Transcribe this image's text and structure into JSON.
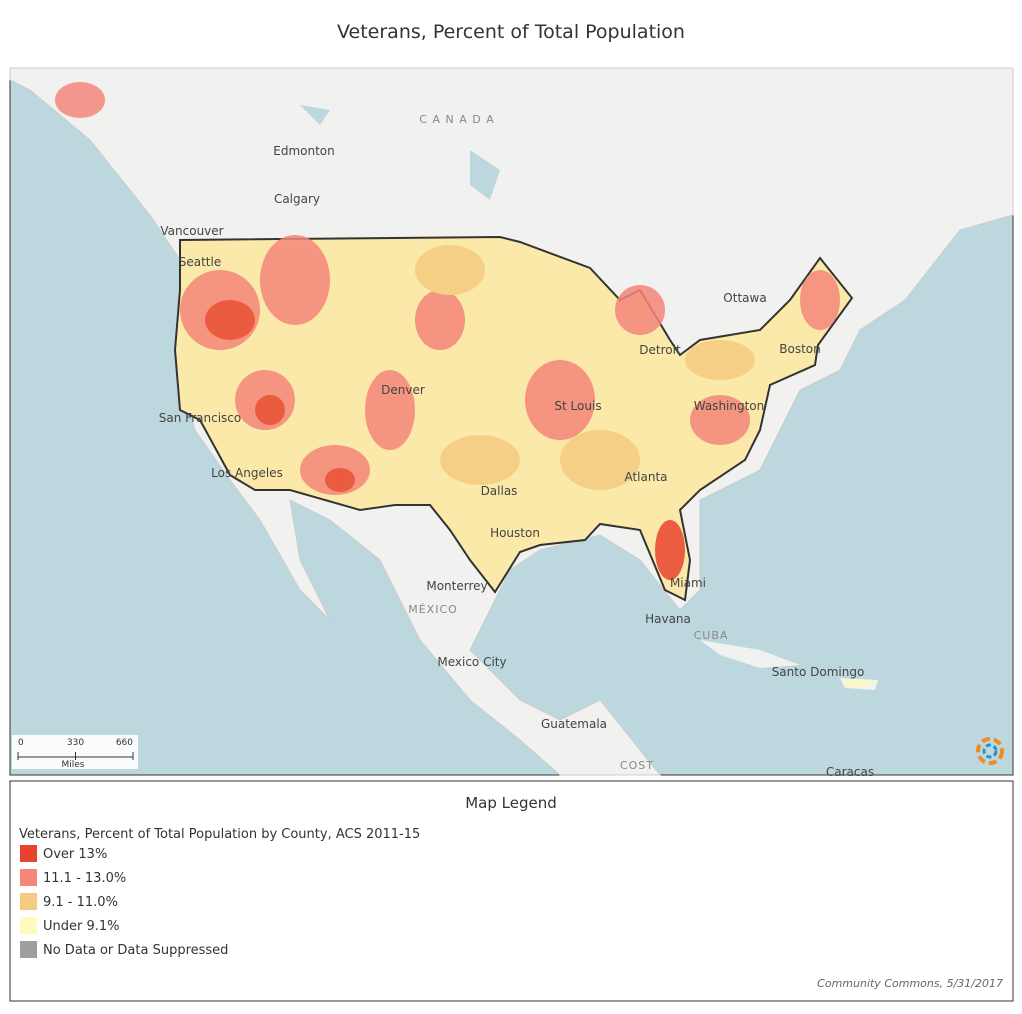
{
  "header": {
    "title": "Veterans, Percent of Total Population"
  },
  "map": {
    "labels": {
      "canada": "C A N A D A",
      "edmonton": "Edmonton",
      "calgary": "Calgary",
      "vancouver": "Vancouver",
      "seattle": "Seattle",
      "san_francisco": "San Francisco",
      "los_angeles": "Los Angeles",
      "denver": "Denver",
      "dallas": "Dallas",
      "houston": "Houston",
      "st_louis": "St Louis",
      "atlanta": "Atlanta",
      "miami": "Miami",
      "detroit": "Detroit",
      "ottawa": "Ottawa",
      "boston": "Boston",
      "washington": "Washington",
      "monterrey": "Monterrey",
      "mexico": "MÉXICO",
      "mexico_city": "Mexico City",
      "havana": "Havana",
      "cuba": "CUBA",
      "santo_domingo": "Santo Domingo",
      "guatemala": "Guatemala",
      "costa": "COST",
      "caracas": "Caracas"
    },
    "scale": {
      "ticks": [
        0,
        330,
        660
      ],
      "unit": "Miles"
    }
  },
  "legend": {
    "title": "Map Legend",
    "subtitle": "Veterans, Percent of Total Population by County, ACS 2011-15",
    "items": [
      {
        "label": "Over 13%",
        "color": "#e8432e"
      },
      {
        "label": "11.1 - 13.0%",
        "color": "#f5867a"
      },
      {
        "label": "9.1 - 11.0%",
        "color": "#f4cb80"
      },
      {
        "label": "Under 9.1%",
        "color": "#fdf9bf"
      },
      {
        "label": "No Data or Data Suppressed",
        "color": "#9e9e9e"
      }
    ],
    "source": "Community Commons, 5/31/2017"
  }
}
